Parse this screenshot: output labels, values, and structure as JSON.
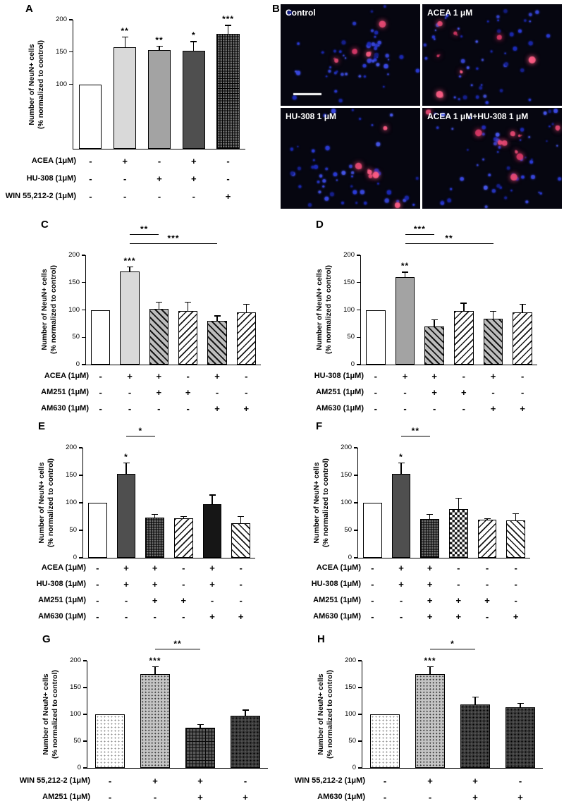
{
  "figure": {
    "ylabel_line1": "Number of NeuN+ cells",
    "ylabel_line2": "(% normalized to control)"
  },
  "micrographs": {
    "panel_letter": "B",
    "images": [
      {
        "label": "Control",
        "blue_cells": 62,
        "red_cells": 4,
        "scale_bar": true
      },
      {
        "label": "ACEA 1 μM",
        "blue_cells": 56,
        "red_cells": 7,
        "scale_bar": false
      },
      {
        "label": "HU-308 1 μM",
        "blue_cells": 62,
        "red_cells": 6,
        "scale_bar": false
      },
      {
        "label": "ACEA 1 μM+HU-308 1 μM",
        "blue_cells": 62,
        "red_cells": 10,
        "scale_bar": false
      }
    ]
  },
  "chart_data": [
    {
      "panel": "A",
      "type": "bar",
      "ylabel": "Number of NeuN+ cells (% normalized to control)",
      "ylim": [
        0,
        200
      ],
      "yticks": [
        100,
        150,
        200
      ],
      "categories": [
        "Control",
        "ACEA",
        "HU-308",
        "ACEA+HU-308",
        "WIN 55,212-2"
      ],
      "values": [
        100,
        157,
        153,
        152,
        178
      ],
      "errors": [
        0,
        17,
        7,
        15,
        14
      ],
      "significance": [
        "",
        "**",
        "**",
        "*",
        "***"
      ],
      "brackets": [],
      "patterns": [
        "white",
        "gray-light",
        "gray-mid",
        "gray-dark",
        "cross-fine"
      ],
      "treatment_rows": [
        {
          "label": "ACEA (1μM)",
          "signs": [
            "-",
            "+",
            "-",
            "+",
            "-"
          ]
        },
        {
          "label": "HU-308 (1μM)",
          "signs": [
            "-",
            "-",
            "+",
            "+",
            "-"
          ]
        },
        {
          "label": "WIN 55,212-2 (1μM)",
          "signs": [
            "-",
            "-",
            "-",
            "-",
            "+"
          ]
        }
      ]
    },
    {
      "panel": "C",
      "type": "bar",
      "ylabel": "Number of NeuN+ cells (% normalized to control)",
      "ylim": [
        0,
        200
      ],
      "yticks": [
        0,
        50,
        100,
        150,
        200
      ],
      "categories": [
        "Control",
        "ACEA",
        "ACEA+AM251",
        "AM251",
        "ACEA+AM630",
        "AM630"
      ],
      "values": [
        100,
        170,
        102,
        98,
        80,
        96
      ],
      "errors": [
        0,
        10,
        13,
        17,
        10,
        15
      ],
      "significance": [
        "",
        "***",
        "",
        "",
        "",
        ""
      ],
      "brackets": [
        {
          "from": 1,
          "to": 2,
          "label": "**"
        },
        {
          "from": 1,
          "to": 4,
          "label": "***"
        }
      ],
      "patterns": [
        "white",
        "gray-light",
        "hatch-fwd",
        "hatch-back",
        "hatch-fwd",
        "hatch-back"
      ],
      "treatment_rows": [
        {
          "label": "ACEA (1μM)",
          "signs": [
            "-",
            "+",
            "+",
            "-",
            "+",
            "-"
          ]
        },
        {
          "label": "AM251 (1μM)",
          "signs": [
            "-",
            "-",
            "+",
            "+",
            "-",
            "-"
          ]
        },
        {
          "label": "AM630 (1μM)",
          "signs": [
            "-",
            "-",
            "-",
            "-",
            "+",
            "+"
          ]
        }
      ]
    },
    {
      "panel": "D",
      "type": "bar",
      "ylabel": "Number of NeuN+ cells (% normalized to control)",
      "ylim": [
        0,
        200
      ],
      "yticks": [
        0,
        50,
        100,
        150,
        200
      ],
      "categories": [
        "Control",
        "HU-308",
        "HU-308+AM251",
        "AM251",
        "HU-308+AM630",
        "AM630"
      ],
      "values": [
        100,
        160,
        70,
        98,
        84,
        96
      ],
      "errors": [
        0,
        10,
        13,
        15,
        14,
        15
      ],
      "significance": [
        "",
        "**",
        "",
        "",
        "",
        ""
      ],
      "brackets": [
        {
          "from": 1,
          "to": 2,
          "label": "***"
        },
        {
          "from": 1,
          "to": 4,
          "label": "**"
        }
      ],
      "patterns": [
        "white",
        "gray-mid",
        "hatch-fwd",
        "hatch-back",
        "hatch-fwd",
        "hatch-back"
      ],
      "treatment_rows": [
        {
          "label": "HU-308 (1μM)",
          "signs": [
            "-",
            "+",
            "+",
            "-",
            "+",
            "-"
          ]
        },
        {
          "label": "AM251 (1μM)",
          "signs": [
            "-",
            "-",
            "+",
            "+",
            "-",
            "-"
          ]
        },
        {
          "label": "AM630 (1μM)",
          "signs": [
            "-",
            "-",
            "-",
            "-",
            "+",
            "+"
          ]
        }
      ]
    },
    {
      "panel": "E",
      "type": "bar",
      "ylabel": "Number of NeuN+ cells (% normalized to control)",
      "ylim": [
        0,
        200
      ],
      "yticks": [
        0,
        50,
        100,
        150,
        200
      ],
      "categories": [
        "Control",
        "ACEA+HU-308",
        "ACEA+HU-308+AM251",
        "AM251",
        "ACEA+HU-308+AM630",
        "AM630"
      ],
      "values": [
        100,
        153,
        73,
        72,
        98,
        63
      ],
      "errors": [
        0,
        20,
        7,
        4,
        17,
        13
      ],
      "significance": [
        "",
        "*",
        "",
        "",
        "",
        ""
      ],
      "brackets": [
        {
          "from": 1,
          "to": 2,
          "label": "*"
        }
      ],
      "patterns": [
        "white",
        "gray-dark",
        "cross-fine",
        "hatch-back",
        "black",
        "hatch-fwd-light"
      ],
      "treatment_rows": [
        {
          "label": "ACEA (1μM)",
          "signs": [
            "-",
            "+",
            "+",
            "-",
            "+",
            "-"
          ]
        },
        {
          "label": "HU-308 (1μM)",
          "signs": [
            "-",
            "+",
            "+",
            "-",
            "+",
            "-"
          ]
        },
        {
          "label": "AM251 (1μM)",
          "signs": [
            "-",
            "-",
            "+",
            "+",
            "-",
            "-"
          ]
        },
        {
          "label": "AM630 (1μM)",
          "signs": [
            "-",
            "-",
            "-",
            "-",
            "+",
            "+"
          ]
        }
      ]
    },
    {
      "panel": "F",
      "type": "bar",
      "ylabel": "Number of NeuN+ cells (% normalized to control)",
      "ylim": [
        0,
        200
      ],
      "yticks": [
        0,
        50,
        100,
        150,
        200
      ],
      "categories": [
        "Control",
        "ACEA+HU-308",
        "ACEA+HU-308+AM251+AM630",
        "AM251+AM630",
        "AM251",
        "AM630"
      ],
      "values": [
        100,
        153,
        70,
        89,
        69,
        68
      ],
      "errors": [
        0,
        20,
        10,
        20,
        3,
        13
      ],
      "significance": [
        "",
        "*",
        "",
        "",
        "",
        ""
      ],
      "brackets": [
        {
          "from": 1,
          "to": 2,
          "label": "**"
        }
      ],
      "patterns": [
        "white",
        "gray-dark",
        "cross-fine",
        "checker",
        "hatch-back",
        "hatch-fwd-light"
      ],
      "treatment_rows": [
        {
          "label": "ACEA (1μM)",
          "signs": [
            "-",
            "+",
            "+",
            "-",
            "-",
            "-"
          ]
        },
        {
          "label": "HU-308 (1μM)",
          "signs": [
            "-",
            "+",
            "+",
            "-",
            "-",
            "-"
          ]
        },
        {
          "label": "AM251 (1μM)",
          "signs": [
            "-",
            "-",
            "+",
            "+",
            "+",
            "-"
          ]
        },
        {
          "label": "AM630 (1μM)",
          "signs": [
            "-",
            "-",
            "+",
            "+",
            "-",
            "+"
          ]
        }
      ]
    },
    {
      "panel": "G",
      "type": "bar",
      "ylabel": "Number of NeuN+ cells (% normalized to control)",
      "ylim": [
        0,
        200
      ],
      "yticks": [
        0,
        50,
        100,
        150,
        200
      ],
      "categories": [
        "Control",
        "WIN 55,212-2",
        "WIN 55,212-2+AM251",
        "AM251"
      ],
      "values": [
        100,
        175,
        75,
        98
      ],
      "errors": [
        0,
        15,
        7,
        11
      ],
      "significance": [
        "",
        "***",
        "",
        ""
      ],
      "brackets": [
        {
          "from": 1,
          "to": 2,
          "label": "**"
        }
      ],
      "patterns": [
        "dots-sparse",
        "dots-gray",
        "cross-dark",
        "dark-dots"
      ],
      "treatment_rows": [
        {
          "label": "WIN 55,212-2 (1μM)",
          "signs": [
            "-",
            "+",
            "+",
            "-"
          ]
        },
        {
          "label": "AM251 (1μM)",
          "signs": [
            "-",
            "-",
            "+",
            "+"
          ]
        }
      ]
    },
    {
      "panel": "H",
      "type": "bar",
      "ylabel": "Number of NeuN+ cells (% normalized to control)",
      "ylim": [
        0,
        200
      ],
      "yticks": [
        0,
        50,
        100,
        150,
        200
      ],
      "categories": [
        "Control",
        "WIN 55,212-2",
        "WIN 55,212-2+AM630",
        "AM630"
      ],
      "values": [
        100,
        175,
        118,
        113
      ],
      "errors": [
        0,
        15,
        15,
        8
      ],
      "significance": [
        "",
        "***",
        "",
        ""
      ],
      "brackets": [
        {
          "from": 1,
          "to": 2,
          "label": "*"
        }
      ],
      "patterns": [
        "dots-sparse",
        "dots-gray",
        "dark-dots",
        "dark-dots"
      ],
      "treatment_rows": [
        {
          "label": "WIN 55,212-2 (1μM)",
          "signs": [
            "-",
            "+",
            "+",
            "-"
          ]
        },
        {
          "label": "AM630 (1μM)",
          "signs": [
            "-",
            "-",
            "+",
            "+"
          ]
        }
      ]
    }
  ]
}
